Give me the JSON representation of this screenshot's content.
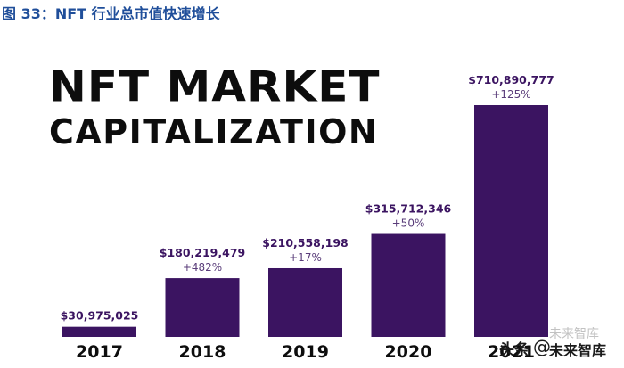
{
  "figure_caption": "图 33：NFT 行业总市值快速增长",
  "chart_data": {
    "type": "bar",
    "title_line1": "NFT MARKET",
    "title_line2": "CAPITALIZATION",
    "categories": [
      "2017",
      "2018",
      "2019",
      "2020",
      "2021"
    ],
    "values": [
      30975025,
      180219479,
      210558198,
      315712346,
      710890777
    ],
    "value_labels": [
      "$30,975,025",
      "$180,219,479",
      "$210,558,198",
      "$315,712,346",
      "$710,890,777"
    ],
    "growth_labels": [
      "",
      "+482%",
      "+17%",
      "+50%",
      "+125%"
    ],
    "ylim": [
      0,
      710890777
    ],
    "bar_color": "#3b1461",
    "value_label_color": "#3b1461",
    "growth_label_color": "#5a3d7a",
    "category_label_color": "#0d0d0d"
  },
  "watermark": {
    "logo": "头条",
    "at": "@",
    "text": "未来智库",
    "faint_text": "未来智库"
  }
}
